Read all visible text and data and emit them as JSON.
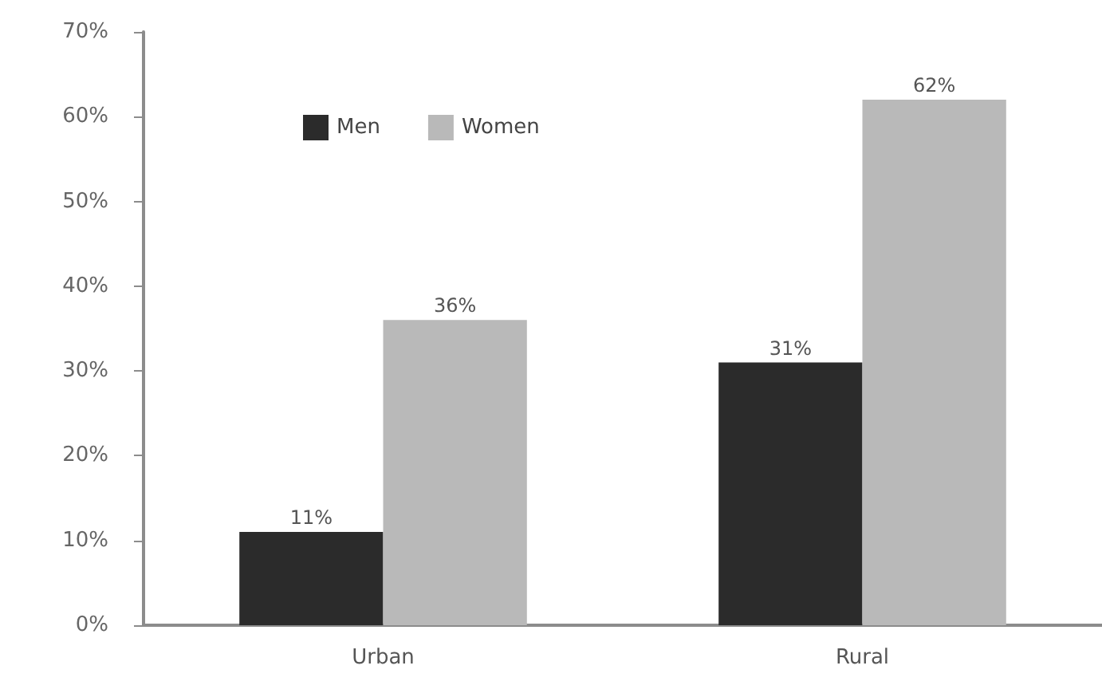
{
  "chart_data": {
    "type": "bar",
    "categories": [
      "Urban",
      "Rural"
    ],
    "series": [
      {
        "name": "Men",
        "color": "#2b2b2b",
        "values": [
          11,
          31
        ],
        "value_labels": [
          "11%",
          "31%"
        ]
      },
      {
        "name": "Women",
        "color": "#b9b9b9",
        "values": [
          36,
          62
        ],
        "value_labels": [
          "36%",
          "62%"
        ]
      }
    ],
    "ylim": [
      0,
      70
    ],
    "yticks": [
      {
        "value": 0,
        "label": "0%"
      },
      {
        "value": 10,
        "label": "10%"
      },
      {
        "value": 20,
        "label": "20%"
      },
      {
        "value": 30,
        "label": "30%"
      },
      {
        "value": 40,
        "label": "40%"
      },
      {
        "value": 50,
        "label": "50%"
      },
      {
        "value": 60,
        "label": "60%"
      },
      {
        "value": 70,
        "label": "70%"
      }
    ],
    "grid": false,
    "legend": "top left"
  }
}
